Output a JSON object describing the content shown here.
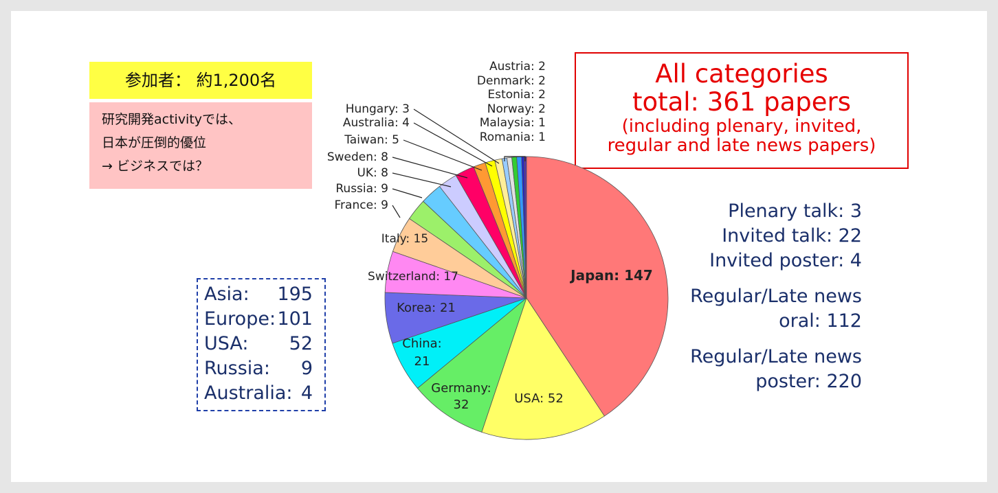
{
  "participants": "参加者： 約1,200名",
  "note_lines": [
    "研究開発activityでは、",
    "日本が圧倒的優位",
    "→ ビジネスでは？"
  ],
  "total_box": {
    "line1": "All categories",
    "line2": "total:  361 papers",
    "line3": "(including plenary, invited,",
    "line4": "regular and late news papers)"
  },
  "breakdown": [
    "Plenary talk: 3",
    "Invited talk: 22",
    "Invited poster: 4",
    "Regular/Late news",
    "oral: 112",
    "Regular/Late news",
    "poster: 220"
  ],
  "regions": [
    {
      "name": "Asia:",
      "value": "195"
    },
    {
      "name": "Europe:",
      "value": "101"
    },
    {
      "name": "USA:",
      "value": "52"
    },
    {
      "name": "Russia:",
      "value": "9"
    },
    {
      "name": "Australia:",
      "value": "4"
    }
  ],
  "chart_data": {
    "type": "pie",
    "total": 361,
    "slices": [
      {
        "label": "Japan: 147",
        "country": "Japan",
        "value": 147,
        "color": "#ff7878"
      },
      {
        "label": "USA: 52",
        "country": "USA",
        "value": 52,
        "color": "#ffff66"
      },
      {
        "label": "Germany: 32",
        "country": "Germany",
        "value": 32,
        "color": "#66ee66"
      },
      {
        "label": "China: 21",
        "country": "China",
        "value": 21,
        "color": "#00f0f8"
      },
      {
        "label": "Korea: 21",
        "country": "Korea",
        "value": 21,
        "color": "#6a6ae8"
      },
      {
        "label": "Switzerland: 17",
        "country": "Switzerland",
        "value": 17,
        "color": "#ff88f2"
      },
      {
        "label": "Italy: 15",
        "country": "Italy",
        "value": 15,
        "color": "#ffcc99"
      },
      {
        "label": "France: 9",
        "country": "France",
        "value": 9,
        "color": "#9cf06a"
      },
      {
        "label": "Russia: 9",
        "country": "Russia",
        "value": 9,
        "color": "#66ccff"
      },
      {
        "label": "UK: 8",
        "country": "UK",
        "value": 8,
        "color": "#ccccff"
      },
      {
        "label": "Sweden: 8",
        "country": "Sweden",
        "value": 8,
        "color": "#ff0066"
      },
      {
        "label": "Taiwan: 5",
        "country": "Taiwan",
        "value": 5,
        "color": "#ff9933"
      },
      {
        "label": "Australia: 4",
        "country": "Australia",
        "value": 4,
        "color": "#ffff00"
      },
      {
        "label": "Hungary: 3",
        "country": "Hungary",
        "value": 3,
        "color": "#ffee99"
      },
      {
        "label": "Austria: 2",
        "country": "Austria",
        "value": 2,
        "color": "#99ccff"
      },
      {
        "label": "Denmark: 2",
        "country": "Denmark",
        "value": 2,
        "color": "#e0e0e0"
      },
      {
        "label": "Estonia: 2",
        "country": "Estonia",
        "value": 2,
        "color": "#33cc33"
      },
      {
        "label": "Norway: 2",
        "country": "Norway",
        "value": 2,
        "color": "#3399ff"
      },
      {
        "label": "Malaysia: 1",
        "country": "Malaysia",
        "value": 1,
        "color": "#2222cc"
      },
      {
        "label": "Romania: 1",
        "country": "Romania",
        "value": 1,
        "color": "#5533aa"
      }
    ]
  }
}
